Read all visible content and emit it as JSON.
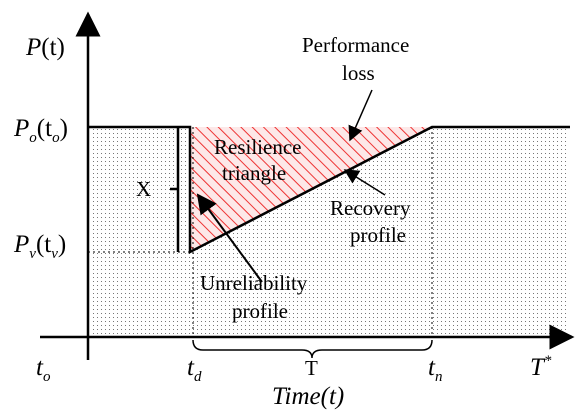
{
  "y_axis": {
    "label": {
      "base": "P",
      "arg": "(t)"
    },
    "levels": [
      {
        "base": "P",
        "sub": "o",
        "open": "(t",
        "argsub": "o",
        "close": ")"
      },
      {
        "base": "P",
        "sub": "v",
        "open": "(t",
        "argsub": "v",
        "close": ")"
      }
    ]
  },
  "x_axis": {
    "label": {
      "base": "Time",
      "arg": "(t)"
    },
    "ticks": [
      {
        "base": "t",
        "sub": "o"
      },
      {
        "base": "t",
        "sub": "d"
      },
      {
        "base": "T"
      },
      {
        "base": "t",
        "sub": "n"
      },
      {
        "base": "T",
        "sup": "*"
      }
    ]
  },
  "annotations": {
    "performance_loss": [
      "Performance",
      "loss"
    ],
    "resilience_triangle": [
      "Resilience",
      "triangle"
    ],
    "recovery_profile": [
      "Recovery",
      "profile"
    ],
    "unreliability_profile": [
      "Unreliability",
      "profile"
    ],
    "drop": "X"
  }
}
